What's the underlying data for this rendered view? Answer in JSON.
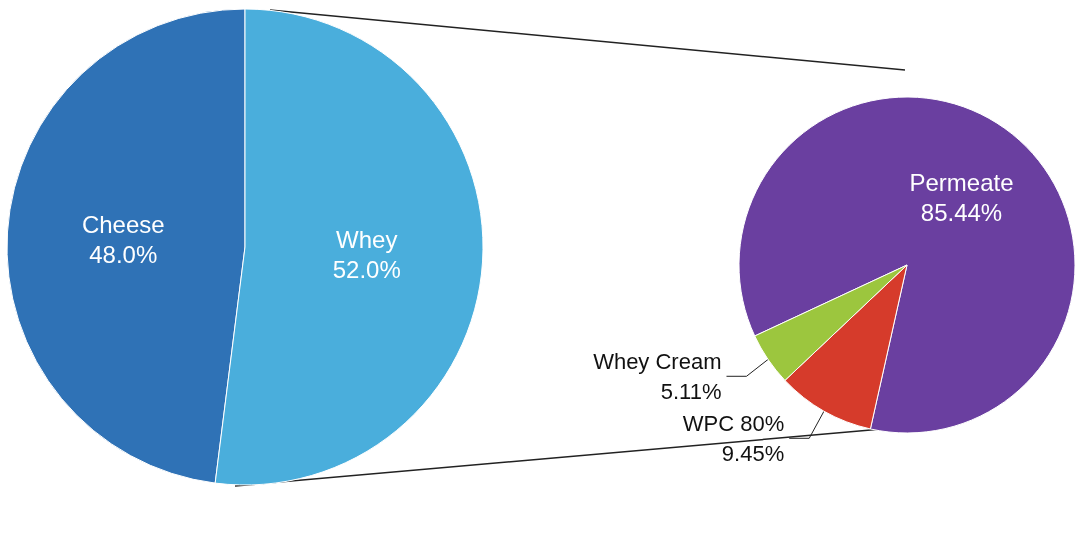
{
  "chart_data": [
    {
      "type": "pie",
      "categories": [
        "Cheese",
        "Whey"
      ],
      "values": [
        48.0,
        52.0
      ],
      "colors": [
        "#2f72b6",
        "#4aaedc"
      ],
      "value_labels": [
        "48.0%",
        "52.0%"
      ],
      "legend": false
    },
    {
      "type": "pie",
      "categories": [
        "Permeate",
        "WPC 80%",
        "Whey Cream"
      ],
      "values": [
        85.44,
        9.45,
        5.11
      ],
      "colors": [
        "#6a3fa0",
        "#d63b2b",
        "#9cc63e"
      ],
      "value_labels": [
        "85.44%",
        "9.45%",
        "5.11%"
      ],
      "legend": false
    }
  ]
}
